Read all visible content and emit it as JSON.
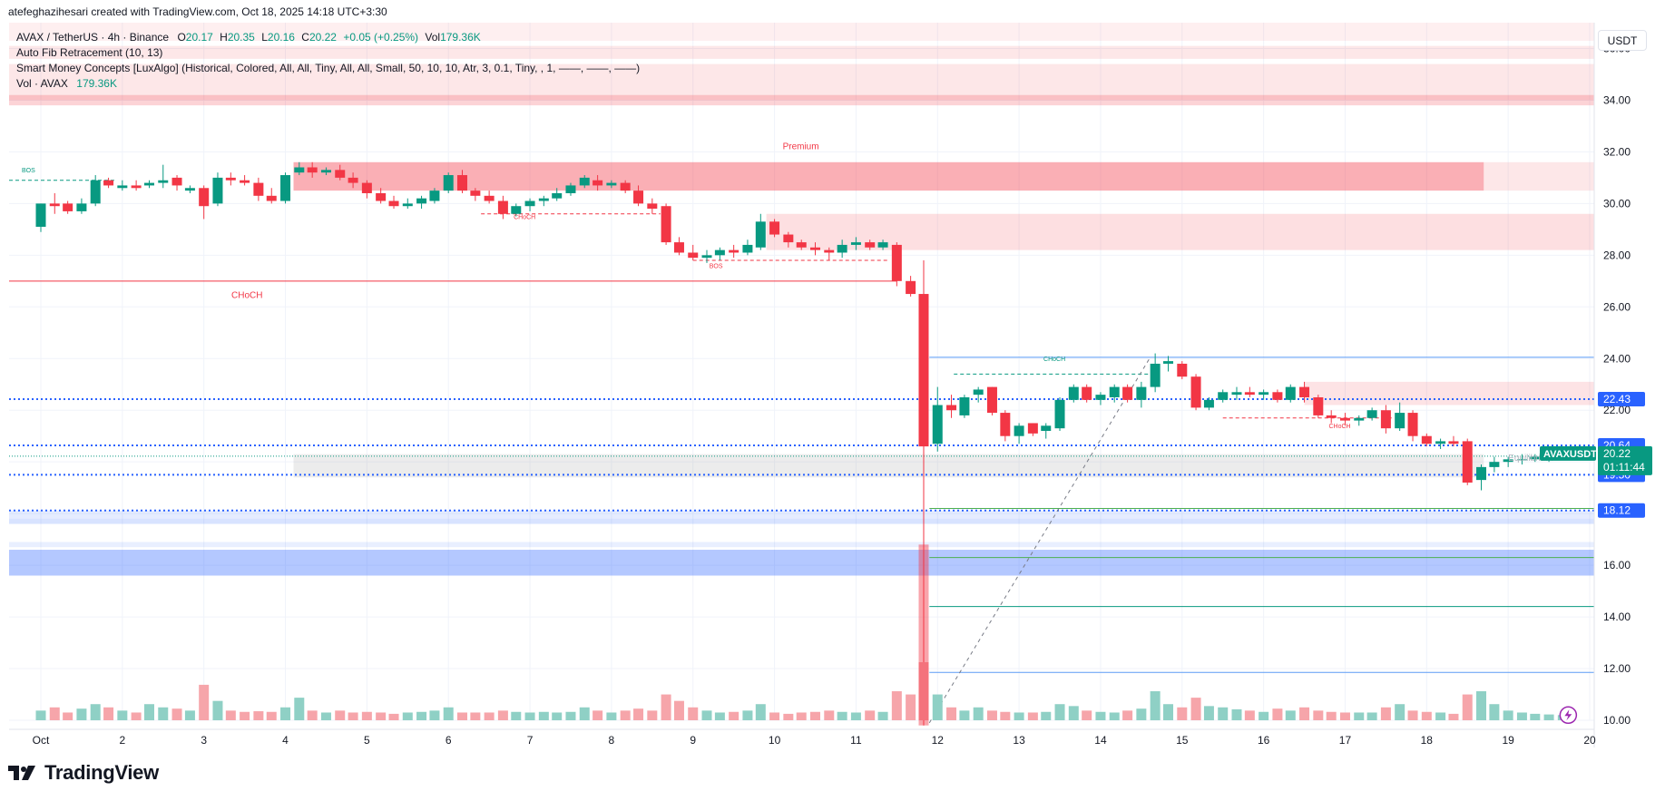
{
  "header": {
    "author_line": "atefeghazihesari created with TradingView.com, Oct 18, 2025 14:18 UTC+3:30"
  },
  "legend": {
    "symbol_title": "AVAX / TetherUS · 4h · Binance",
    "ohlc": {
      "o_label": "O",
      "o": "20.17",
      "h_label": "H",
      "h": "20.35",
      "l_label": "L",
      "l": "20.16",
      "c_label": "C",
      "c": "20.22",
      "change": "+0.05 (+0.25%)",
      "vol_label": "Vol",
      "vol": "179.36K"
    },
    "indicators": [
      "Auto Fib Retracement (10, 13)",
      "Smart Money Concepts [LuxAlgo] (Historical, Colored, All, All, Tiny, All, All, Small, 50, 10, 10, Atr, 3, 0.1, Tiny, , 1, ——, ——, ——)"
    ],
    "volume_label": "Vol · AVAX",
    "volume_value": "179.36K"
  },
  "price_axis": {
    "currency": "USDT",
    "ticks": [
      "36.00",
      "34.00",
      "32.00",
      "30.00",
      "28.00",
      "26.00",
      "24.00",
      "22.00",
      "20.00",
      "18.00",
      "16.00",
      "14.00",
      "12.00",
      "10.00"
    ]
  },
  "time_axis": {
    "ticks": [
      "Oct",
      "2",
      "3",
      "4",
      "5",
      "6",
      "7",
      "8",
      "9",
      "10",
      "11",
      "12",
      "13",
      "14",
      "15",
      "16",
      "17",
      "18",
      "19",
      "20"
    ]
  },
  "annotations": {
    "premium": "Premium",
    "equilibrium": "Equilibrium",
    "bos": "BOS",
    "choch": "CHoCH"
  },
  "price_labels": [
    {
      "text": "22.43",
      "value": 22.43,
      "color": "#2962ff"
    },
    {
      "text": "20.64",
      "value": 20.64,
      "color": "#2962ff"
    },
    {
      "text": "19.50",
      "value": 19.5,
      "color": "#2962ff"
    },
    {
      "text": "18.12",
      "value": 18.12,
      "color": "#2962ff"
    }
  ],
  "current_price": {
    "symbol": "AVAXUSDT",
    "price": "20.22",
    "countdown": "01:11:44",
    "value": 20.22,
    "color": "#089981"
  },
  "branding": {
    "logo_text": "TradingView"
  },
  "colors": {
    "up": "#089981",
    "down": "#f23645",
    "up_vol": "#8fd0c5",
    "down_vol": "#f6a5aa"
  },
  "chart_data": {
    "type": "candlestick",
    "ylim": [
      10,
      37
    ],
    "x_day_range": [
      1,
      20
    ],
    "candles": [
      {
        "d": 1.0,
        "o": 29.1,
        "h": 30.0,
        "l": 28.9,
        "c": 30.0,
        "v": 15
      },
      {
        "d": 1.17,
        "o": 30.0,
        "h": 30.4,
        "l": 29.6,
        "c": 29.9,
        "v": 20
      },
      {
        "d": 1.33,
        "o": 30.0,
        "h": 30.1,
        "l": 29.6,
        "c": 29.7,
        "v": 12
      },
      {
        "d": 1.5,
        "o": 29.7,
        "h": 30.2,
        "l": 29.6,
        "c": 30.0,
        "v": 18
      },
      {
        "d": 1.67,
        "o": 30.0,
        "h": 31.1,
        "l": 29.9,
        "c": 30.9,
        "v": 25
      },
      {
        "d": 1.83,
        "o": 30.9,
        "h": 31.0,
        "l": 30.6,
        "c": 30.7,
        "v": 20
      },
      {
        "d": 2.0,
        "o": 30.6,
        "h": 30.9,
        "l": 30.5,
        "c": 30.7,
        "v": 15
      },
      {
        "d": 2.17,
        "o": 30.7,
        "h": 30.9,
        "l": 30.5,
        "c": 30.6,
        "v": 12
      },
      {
        "d": 2.33,
        "o": 30.7,
        "h": 30.9,
        "l": 30.6,
        "c": 30.8,
        "v": 25
      },
      {
        "d": 2.5,
        "o": 30.8,
        "h": 31.5,
        "l": 30.6,
        "c": 30.9,
        "v": 20
      },
      {
        "d": 2.67,
        "o": 31.0,
        "h": 31.1,
        "l": 30.5,
        "c": 30.7,
        "v": 18
      },
      {
        "d": 2.83,
        "o": 30.5,
        "h": 30.7,
        "l": 30.4,
        "c": 30.6,
        "v": 15
      },
      {
        "d": 3.0,
        "o": 30.6,
        "h": 30.7,
        "l": 29.4,
        "c": 29.9,
        "v": 55
      },
      {
        "d": 3.17,
        "o": 30.0,
        "h": 31.2,
        "l": 29.9,
        "c": 31.0,
        "v": 30
      },
      {
        "d": 3.33,
        "o": 31.0,
        "h": 31.2,
        "l": 30.7,
        "c": 30.9,
        "v": 15
      },
      {
        "d": 3.5,
        "o": 30.9,
        "h": 31.1,
        "l": 30.7,
        "c": 30.8,
        "v": 13
      },
      {
        "d": 3.67,
        "o": 30.8,
        "h": 31.0,
        "l": 30.1,
        "c": 30.3,
        "v": 14
      },
      {
        "d": 3.83,
        "o": 30.3,
        "h": 30.6,
        "l": 30.0,
        "c": 30.1,
        "v": 13
      },
      {
        "d": 4.0,
        "o": 30.1,
        "h": 31.2,
        "l": 30.0,
        "c": 31.1,
        "v": 20
      },
      {
        "d": 4.17,
        "o": 31.2,
        "h": 31.6,
        "l": 31.1,
        "c": 31.4,
        "v": 35
      },
      {
        "d": 4.33,
        "o": 31.4,
        "h": 31.6,
        "l": 31.0,
        "c": 31.2,
        "v": 15
      },
      {
        "d": 4.5,
        "o": 31.2,
        "h": 31.4,
        "l": 31.1,
        "c": 31.3,
        "v": 12
      },
      {
        "d": 4.67,
        "o": 31.3,
        "h": 31.5,
        "l": 30.9,
        "c": 31.0,
        "v": 15
      },
      {
        "d": 4.83,
        "o": 31.0,
        "h": 31.2,
        "l": 30.6,
        "c": 30.8,
        "v": 12
      },
      {
        "d": 5.0,
        "o": 30.8,
        "h": 30.9,
        "l": 30.2,
        "c": 30.4,
        "v": 13
      },
      {
        "d": 5.17,
        "o": 30.4,
        "h": 30.6,
        "l": 30.0,
        "c": 30.1,
        "v": 12
      },
      {
        "d": 5.33,
        "o": 30.1,
        "h": 30.3,
        "l": 29.8,
        "c": 29.9,
        "v": 10
      },
      {
        "d": 5.5,
        "o": 29.9,
        "h": 30.2,
        "l": 29.8,
        "c": 30.0,
        "v": 12
      },
      {
        "d": 5.67,
        "o": 30.0,
        "h": 30.3,
        "l": 29.8,
        "c": 30.2,
        "v": 13
      },
      {
        "d": 5.83,
        "o": 30.1,
        "h": 30.6,
        "l": 30.0,
        "c": 30.5,
        "v": 15
      },
      {
        "d": 6.0,
        "o": 30.5,
        "h": 31.2,
        "l": 30.4,
        "c": 31.1,
        "v": 20
      },
      {
        "d": 6.17,
        "o": 31.1,
        "h": 31.3,
        "l": 30.4,
        "c": 30.5,
        "v": 12
      },
      {
        "d": 6.33,
        "o": 30.5,
        "h": 30.6,
        "l": 30.1,
        "c": 30.3,
        "v": 12
      },
      {
        "d": 6.5,
        "o": 30.3,
        "h": 30.5,
        "l": 30.0,
        "c": 30.1,
        "v": 12
      },
      {
        "d": 6.67,
        "o": 30.1,
        "h": 30.3,
        "l": 29.4,
        "c": 29.6,
        "v": 15
      },
      {
        "d": 6.83,
        "o": 29.6,
        "h": 30.0,
        "l": 29.5,
        "c": 29.9,
        "v": 13
      },
      {
        "d": 7.0,
        "o": 29.9,
        "h": 30.2,
        "l": 29.7,
        "c": 30.1,
        "v": 12
      },
      {
        "d": 7.17,
        "o": 30.1,
        "h": 30.3,
        "l": 29.9,
        "c": 30.2,
        "v": 13
      },
      {
        "d": 7.33,
        "o": 30.2,
        "h": 30.6,
        "l": 30.1,
        "c": 30.4,
        "v": 12
      },
      {
        "d": 7.5,
        "o": 30.4,
        "h": 30.8,
        "l": 30.3,
        "c": 30.7,
        "v": 13
      },
      {
        "d": 7.67,
        "o": 30.7,
        "h": 31.1,
        "l": 30.6,
        "c": 31.0,
        "v": 20
      },
      {
        "d": 7.83,
        "o": 30.9,
        "h": 31.1,
        "l": 30.5,
        "c": 30.7,
        "v": 15
      },
      {
        "d": 8.0,
        "o": 30.7,
        "h": 30.9,
        "l": 30.6,
        "c": 30.8,
        "v": 12
      },
      {
        "d": 8.17,
        "o": 30.8,
        "h": 30.9,
        "l": 30.4,
        "c": 30.5,
        "v": 15
      },
      {
        "d": 8.33,
        "o": 30.5,
        "h": 30.7,
        "l": 29.9,
        "c": 30.0,
        "v": 18
      },
      {
        "d": 8.5,
        "o": 30.0,
        "h": 30.2,
        "l": 29.6,
        "c": 29.8,
        "v": 15
      },
      {
        "d": 8.67,
        "o": 29.9,
        "h": 30.0,
        "l": 28.4,
        "c": 28.5,
        "v": 40
      },
      {
        "d": 8.83,
        "o": 28.5,
        "h": 28.7,
        "l": 28.0,
        "c": 28.1,
        "v": 30
      },
      {
        "d": 9.0,
        "o": 28.1,
        "h": 28.4,
        "l": 27.8,
        "c": 27.9,
        "v": 20
      },
      {
        "d": 9.17,
        "o": 27.9,
        "h": 28.2,
        "l": 27.7,
        "c": 28.0,
        "v": 15
      },
      {
        "d": 9.33,
        "o": 28.0,
        "h": 28.3,
        "l": 27.8,
        "c": 28.2,
        "v": 12
      },
      {
        "d": 9.5,
        "o": 28.2,
        "h": 28.4,
        "l": 27.9,
        "c": 28.1,
        "v": 13
      },
      {
        "d": 9.67,
        "o": 28.1,
        "h": 28.6,
        "l": 28.0,
        "c": 28.4,
        "v": 15
      },
      {
        "d": 9.83,
        "o": 28.3,
        "h": 29.6,
        "l": 28.2,
        "c": 29.3,
        "v": 25
      },
      {
        "d": 10.0,
        "o": 29.3,
        "h": 29.4,
        "l": 28.7,
        "c": 28.8,
        "v": 12
      },
      {
        "d": 10.17,
        "o": 28.8,
        "h": 28.9,
        "l": 28.3,
        "c": 28.5,
        "v": 10
      },
      {
        "d": 10.33,
        "o": 28.5,
        "h": 28.6,
        "l": 28.2,
        "c": 28.3,
        "v": 12
      },
      {
        "d": 10.5,
        "o": 28.3,
        "h": 28.5,
        "l": 28.0,
        "c": 28.2,
        "v": 13
      },
      {
        "d": 10.67,
        "o": 28.2,
        "h": 28.3,
        "l": 27.8,
        "c": 28.1,
        "v": 15
      },
      {
        "d": 10.83,
        "o": 28.1,
        "h": 28.6,
        "l": 27.9,
        "c": 28.4,
        "v": 13
      },
      {
        "d": 11.0,
        "o": 28.4,
        "h": 28.7,
        "l": 28.2,
        "c": 28.5,
        "v": 12
      },
      {
        "d": 11.17,
        "o": 28.5,
        "h": 28.6,
        "l": 28.2,
        "c": 28.3,
        "v": 15
      },
      {
        "d": 11.33,
        "o": 28.3,
        "h": 28.6,
        "l": 28.2,
        "c": 28.5,
        "v": 13
      },
      {
        "d": 11.5,
        "o": 28.4,
        "h": 28.5,
        "l": 26.8,
        "c": 27.0,
        "v": 45
      },
      {
        "d": 11.67,
        "o": 27.0,
        "h": 27.2,
        "l": 26.4,
        "c": 26.5,
        "v": 40
      },
      {
        "d": 11.83,
        "o": 26.5,
        "h": 27.8,
        "l": 20.2,
        "c": 20.6,
        "v": 90
      },
      {
        "d": 12.0,
        "o": 20.7,
        "h": 22.9,
        "l": 20.4,
        "c": 22.2,
        "v": 40
      },
      {
        "d": 12.17,
        "o": 22.2,
        "h": 22.6,
        "l": 21.7,
        "c": 22.0,
        "v": 20
      },
      {
        "d": 12.33,
        "o": 21.8,
        "h": 22.6,
        "l": 21.7,
        "c": 22.5,
        "v": 15
      },
      {
        "d": 12.5,
        "o": 22.6,
        "h": 22.9,
        "l": 22.3,
        "c": 22.8,
        "v": 20
      },
      {
        "d": 12.67,
        "o": 22.9,
        "h": 22.9,
        "l": 21.8,
        "c": 21.9,
        "v": 15
      },
      {
        "d": 12.83,
        "o": 21.9,
        "h": 22.0,
        "l": 20.8,
        "c": 21.0,
        "v": 13
      },
      {
        "d": 13.0,
        "o": 21.0,
        "h": 21.5,
        "l": 20.7,
        "c": 21.4,
        "v": 12
      },
      {
        "d": 13.17,
        "o": 21.5,
        "h": 21.5,
        "l": 21.0,
        "c": 21.1,
        "v": 12
      },
      {
        "d": 13.33,
        "o": 21.2,
        "h": 21.5,
        "l": 20.9,
        "c": 21.4,
        "v": 13
      },
      {
        "d": 13.5,
        "o": 21.3,
        "h": 22.5,
        "l": 21.2,
        "c": 22.4,
        "v": 25
      },
      {
        "d": 13.67,
        "o": 22.4,
        "h": 23.0,
        "l": 22.3,
        "c": 22.9,
        "v": 22
      },
      {
        "d": 13.83,
        "o": 22.9,
        "h": 23.0,
        "l": 22.3,
        "c": 22.4,
        "v": 15
      },
      {
        "d": 14.0,
        "o": 22.4,
        "h": 22.7,
        "l": 22.2,
        "c": 22.6,
        "v": 13
      },
      {
        "d": 14.17,
        "o": 22.5,
        "h": 23.0,
        "l": 22.3,
        "c": 22.9,
        "v": 12
      },
      {
        "d": 14.33,
        "o": 22.9,
        "h": 23.0,
        "l": 22.3,
        "c": 22.4,
        "v": 15
      },
      {
        "d": 14.5,
        "o": 22.4,
        "h": 23.1,
        "l": 22.1,
        "c": 22.9,
        "v": 18
      },
      {
        "d": 14.67,
        "o": 22.9,
        "h": 24.2,
        "l": 22.7,
        "c": 23.8,
        "v": 45
      },
      {
        "d": 14.83,
        "o": 23.8,
        "h": 24.1,
        "l": 23.5,
        "c": 23.9,
        "v": 25
      },
      {
        "d": 15.0,
        "o": 23.8,
        "h": 23.9,
        "l": 23.2,
        "c": 23.3,
        "v": 20
      },
      {
        "d": 15.17,
        "o": 23.3,
        "h": 23.4,
        "l": 22.0,
        "c": 22.1,
        "v": 35
      },
      {
        "d": 15.33,
        "o": 22.1,
        "h": 22.5,
        "l": 22.0,
        "c": 22.4,
        "v": 22
      },
      {
        "d": 15.5,
        "o": 22.4,
        "h": 22.8,
        "l": 22.3,
        "c": 22.7,
        "v": 20
      },
      {
        "d": 15.67,
        "o": 22.6,
        "h": 22.9,
        "l": 22.4,
        "c": 22.7,
        "v": 17
      },
      {
        "d": 15.83,
        "o": 22.7,
        "h": 22.9,
        "l": 22.5,
        "c": 22.6,
        "v": 15
      },
      {
        "d": 16.0,
        "o": 22.6,
        "h": 22.8,
        "l": 22.4,
        "c": 22.7,
        "v": 13
      },
      {
        "d": 16.17,
        "o": 22.7,
        "h": 22.8,
        "l": 22.3,
        "c": 22.4,
        "v": 18
      },
      {
        "d": 16.33,
        "o": 22.4,
        "h": 23.0,
        "l": 22.3,
        "c": 22.9,
        "v": 15
      },
      {
        "d": 16.5,
        "o": 22.9,
        "h": 23.1,
        "l": 22.3,
        "c": 22.5,
        "v": 20
      },
      {
        "d": 16.67,
        "o": 22.5,
        "h": 22.6,
        "l": 21.7,
        "c": 21.8,
        "v": 15
      },
      {
        "d": 16.83,
        "o": 21.8,
        "h": 22.0,
        "l": 21.5,
        "c": 21.7,
        "v": 13
      },
      {
        "d": 17.0,
        "o": 21.7,
        "h": 21.9,
        "l": 21.4,
        "c": 21.6,
        "v": 12
      },
      {
        "d": 17.17,
        "o": 21.6,
        "h": 21.8,
        "l": 21.4,
        "c": 21.7,
        "v": 12
      },
      {
        "d": 17.33,
        "o": 21.7,
        "h": 22.1,
        "l": 21.6,
        "c": 22.0,
        "v": 12
      },
      {
        "d": 17.5,
        "o": 22.0,
        "h": 22.2,
        "l": 21.1,
        "c": 21.3,
        "v": 20
      },
      {
        "d": 17.67,
        "o": 21.3,
        "h": 22.3,
        "l": 21.2,
        "c": 21.9,
        "v": 25
      },
      {
        "d": 17.83,
        "o": 21.9,
        "h": 22.0,
        "l": 20.8,
        "c": 21.0,
        "v": 15
      },
      {
        "d": 18.0,
        "o": 21.0,
        "h": 21.1,
        "l": 20.6,
        "c": 20.7,
        "v": 13
      },
      {
        "d": 18.17,
        "o": 20.7,
        "h": 20.9,
        "l": 20.5,
        "c": 20.8,
        "v": 12
      },
      {
        "d": 18.33,
        "o": 20.8,
        "h": 21.0,
        "l": 20.6,
        "c": 20.7,
        "v": 10
      },
      {
        "d": 18.5,
        "o": 20.8,
        "h": 20.9,
        "l": 19.1,
        "c": 19.2,
        "v": 40
      },
      {
        "d": 18.67,
        "o": 19.3,
        "h": 19.9,
        "l": 18.9,
        "c": 19.8,
        "v": 45
      },
      {
        "d": 18.83,
        "o": 19.8,
        "h": 20.2,
        "l": 19.6,
        "c": 20.0,
        "v": 25
      },
      {
        "d": 19.0,
        "o": 20.0,
        "h": 20.2,
        "l": 19.8,
        "c": 20.1,
        "v": 15
      },
      {
        "d": 19.17,
        "o": 20.1,
        "h": 20.3,
        "l": 19.9,
        "c": 20.1,
        "v": 12
      },
      {
        "d": 19.33,
        "o": 20.1,
        "h": 20.3,
        "l": 20.0,
        "c": 20.2,
        "v": 10
      },
      {
        "d": 19.5,
        "o": 20.1,
        "h": 20.3,
        "l": 20.0,
        "c": 20.2,
        "v": 9
      },
      {
        "d": 19.67,
        "o": 20.17,
        "h": 20.35,
        "l": 20.16,
        "c": 20.22,
        "v": 8
      }
    ]
  }
}
